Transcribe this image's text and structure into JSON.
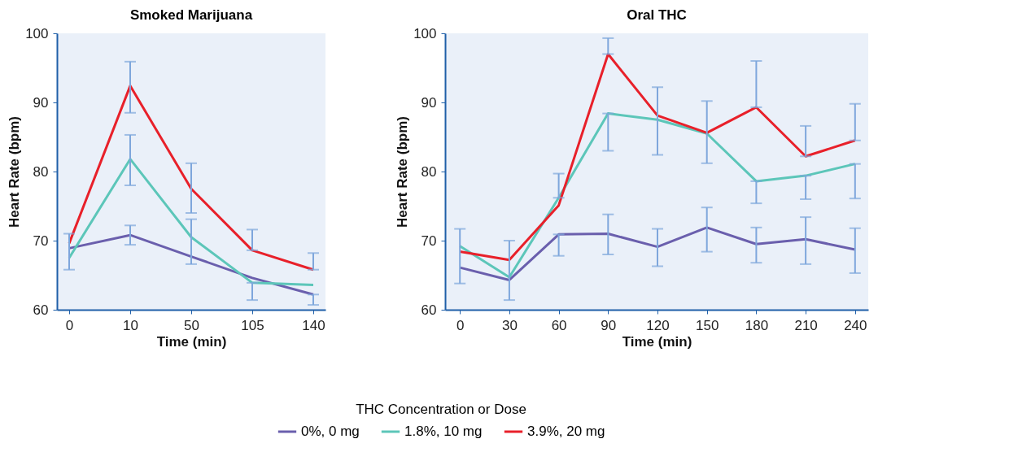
{
  "chart_data": [
    {
      "type": "line",
      "title": "Smoked Marijuana",
      "xlabel": "Time (min)",
      "ylabel": "Heart Rate (bpm)",
      "categories": [
        "0",
        "10",
        "50",
        "105",
        "140"
      ],
      "ylim": [
        60,
        100
      ],
      "yticks": [
        60,
        70,
        80,
        90,
        100
      ],
      "grid": false,
      "legend": "bottom",
      "legend_title": "THC Concentration or Dose",
      "marker": "none",
      "line_style": "solid",
      "series": [
        {
          "name": "0%, 0 mg",
          "color": "#6a5fad",
          "values": [
            68.9,
            70.8,
            67.7,
            64.6,
            62.2
          ],
          "errors": [
            [
              65.8,
              71.0
            ],
            [
              69.4,
              72.2
            ],
            null,
            null,
            [
              60.7,
              62.2
            ]
          ]
        },
        {
          "name": "1.8%, 10 mg",
          "color": "#5cc6b9",
          "values": [
            67.5,
            81.8,
            70.5,
            63.9,
            63.6
          ],
          "errors": [
            null,
            [
              78.0,
              85.3
            ],
            [
              66.6,
              73.1
            ],
            [
              61.4,
              63.9
            ],
            null
          ]
        },
        {
          "name": "3.9%, 20 mg",
          "color": "#e8202a",
          "values": [
            69.6,
            92.4,
            77.5,
            68.6,
            65.8
          ],
          "errors": [
            null,
            [
              88.5,
              95.9
            ],
            [
              74.0,
              81.2
            ],
            [
              68.6,
              71.6
            ],
            [
              65.8,
              68.2
            ]
          ]
        }
      ]
    },
    {
      "type": "line",
      "title": "Oral THC",
      "xlabel": "Time (min)",
      "ylabel": "Heart Rate (bpm)",
      "x": [
        0,
        30,
        60,
        90,
        120,
        150,
        180,
        210,
        240
      ],
      "xlim": [
        -9,
        248
      ],
      "xticks": [
        0,
        30,
        60,
        90,
        120,
        150,
        180,
        210,
        240
      ],
      "ylim": [
        60,
        100
      ],
      "yticks": [
        60,
        70,
        80,
        90,
        100
      ],
      "grid": false,
      "legend": "bottom",
      "marker": "none",
      "line_style": "solid",
      "series": [
        {
          "name": "0%, 0 mg",
          "color": "#6a5fad",
          "values": [
            66.1,
            64.3,
            70.9,
            71.0,
            69.1,
            71.9,
            69.5,
            70.2,
            68.7
          ],
          "errors": [
            [
              63.8,
              71.7
            ],
            [
              61.4,
              70.0
            ],
            [
              67.8,
              70.9
            ],
            [
              68.0,
              73.8
            ],
            [
              66.3,
              71.7
            ],
            [
              68.4,
              74.8
            ],
            [
              66.8,
              71.9
            ],
            [
              66.6,
              73.4
            ],
            [
              65.3,
              71.8
            ]
          ]
        },
        {
          "name": "1.8%, 10 mg",
          "color": "#5cc6b9",
          "values": [
            69.2,
            64.7,
            76.2,
            88.4,
            87.5,
            85.5,
            78.6,
            79.4,
            81.1
          ],
          "errors": [
            null,
            null,
            [
              76.2,
              79.7
            ],
            [
              83.0,
              88.4
            ],
            null,
            null,
            [
              75.4,
              78.6
            ],
            [
              76.0,
              79.4
            ],
            [
              76.1,
              81.1
            ]
          ]
        },
        {
          "name": "3.9%, 20 mg",
          "color": "#e8202a",
          "values": [
            68.4,
            67.2,
            75.1,
            97.0,
            88.1,
            85.6,
            89.3,
            82.2,
            84.5
          ],
          "errors": [
            null,
            null,
            null,
            [
              97.0,
              99.3
            ],
            [
              82.4,
              92.2
            ],
            [
              81.2,
              90.2
            ],
            [
              89.3,
              96.0
            ],
            [
              82.2,
              86.6
            ],
            [
              84.5,
              89.8
            ]
          ]
        }
      ]
    }
  ]
}
